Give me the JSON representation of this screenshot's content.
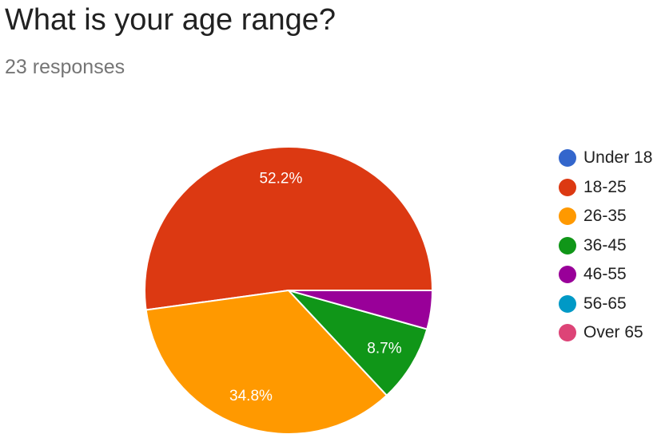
{
  "question": {
    "title": "What is your age range?",
    "responses": "23 responses"
  },
  "chart_data": {
    "type": "pie",
    "categories": [
      "Under 18",
      "18-25",
      "26-35",
      "36-45",
      "46-55",
      "56-65",
      "Over 65"
    ],
    "values": [
      0,
      12,
      8,
      2,
      1,
      0,
      0
    ],
    "percent_labels": [
      "",
      "52.2%",
      "34.8%",
      "8.7%",
      "",
      "",
      ""
    ],
    "colors": [
      "#3366cc",
      "#dc3912",
      "#ff9900",
      "#109618",
      "#990099",
      "#0099c6",
      "#dd4477"
    ],
    "legend_position": "right"
  }
}
